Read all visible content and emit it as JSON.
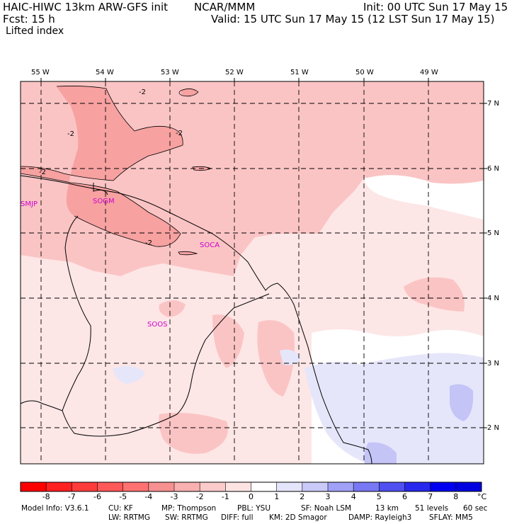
{
  "header": {
    "title_left": "HAIC-HIWC 13km ARW-GFS init",
    "title_center": "NCAR/MMM",
    "init": "Init: 00 UTC Sun 17 May 15",
    "fcst": "Fcst:   15 h",
    "valid": "Valid: 15 UTC Sun 17 May 15 (12 LST Sun 17 May 15)",
    "field": "Lifted index"
  },
  "map": {
    "lon_labels": [
      "55 W",
      "54 W",
      "53 W",
      "52 W",
      "51 W",
      "50 W",
      "49 W"
    ],
    "lat_labels": [
      "7 N",
      "6 N",
      "5 N",
      "4 N",
      "3 N",
      "2 N"
    ],
    "contour_labels": [
      "-2",
      "-2",
      "-2",
      "-2",
      "-2"
    ],
    "stations": [
      "SMJP",
      "SOGM",
      "SOCA",
      "SOOS"
    ],
    "colors": {
      "coast": "#000000",
      "grid": "#000000",
      "li_minus3": "#f7a1a1",
      "li_minus2": "#fbc4c4",
      "li_minus1": "#fde6e6",
      "li_zero": "#ffffff",
      "li_plus1": "#e6e6fb",
      "li_plus2": "#c4c4f7"
    }
  },
  "colorbar": {
    "labels": [
      "-8",
      "-7",
      "-6",
      "-5",
      "-4",
      "-3",
      "-2",
      "-1",
      "0",
      "1",
      "2",
      "3",
      "4",
      "5",
      "6",
      "7",
      "8"
    ],
    "unit": "°C",
    "colors": [
      "#ff0000",
      "#ff2020",
      "#ff3c3c",
      "#ff5858",
      "#ff7272",
      "#f79090",
      "#f9b0b0",
      "#fbcaca",
      "#fde4e4",
      "#ffffff",
      "#e4e4fb",
      "#cacaf9",
      "#a0a0f7",
      "#7878f4",
      "#5050f0",
      "#2828ee",
      "#0000f0",
      "#0000e0"
    ]
  },
  "footer": {
    "line1": [
      "Model Info: V3.6.1",
      "CU: KF",
      "MP: Thompson",
      "PBL: YSU",
      "SF: Noah LSM",
      "13 km",
      "51 levels",
      "60 sec"
    ],
    "line2": [
      "LW: RRTMG",
      "SW: RRTMG",
      "DIFF: full",
      "KM: 2D Smagor",
      "DAMP: Rayleigh3",
      "SFLAY: MM5"
    ]
  }
}
